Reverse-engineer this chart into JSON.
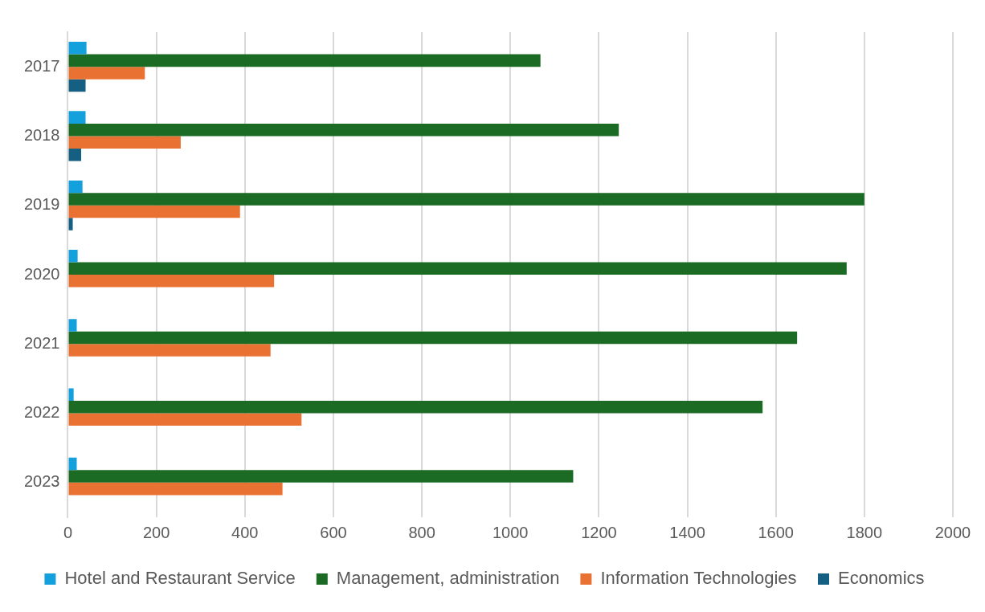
{
  "chart_data": {
    "type": "bar",
    "orientation": "horizontal",
    "categories": [
      "2017",
      "2018",
      "2019",
      "2020",
      "2021",
      "2022",
      "2023"
    ],
    "series": [
      {
        "name": "Hotel and Restaurant Service",
        "color": "#14a0dc",
        "values": [
          42,
          40,
          33,
          22,
          20,
          13,
          20
        ]
      },
      {
        "name": "Management, administration",
        "color": "#1b6b24",
        "values": [
          1068,
          1245,
          1800,
          1760,
          1648,
          1570,
          1142
        ]
      },
      {
        "name": "Information Technologies",
        "color": "#e97132",
        "values": [
          174,
          255,
          389,
          466,
          458,
          528,
          485
        ]
      },
      {
        "name": "Economics",
        "color": "#156082",
        "values": [
          40,
          30,
          11,
          null,
          null,
          null,
          null
        ]
      }
    ],
    "xlim": [
      0,
      2000
    ],
    "xticks": [
      0,
      200,
      400,
      600,
      800,
      1000,
      1200,
      1400,
      1600,
      1800,
      2000
    ],
    "grid": "x",
    "legend": "bottom"
  }
}
